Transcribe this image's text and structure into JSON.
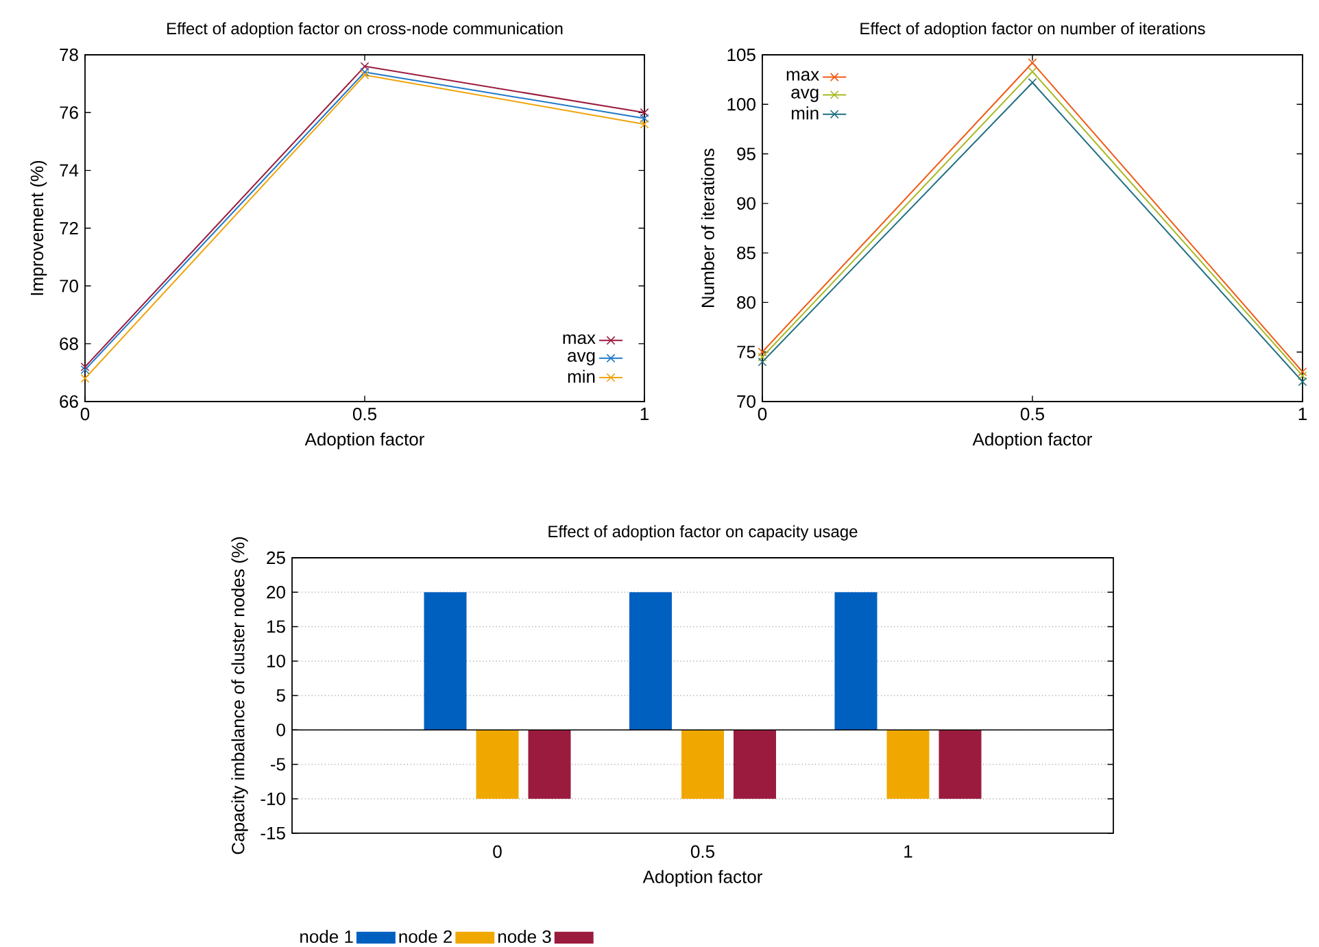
{
  "chart_data": [
    {
      "type": "line",
      "title": "Effect of adoption factor on cross-node communication",
      "xlabel": "Adoption factor",
      "ylabel": "Improvement (%)",
      "x": [
        0,
        0.5,
        1
      ],
      "xlim": [
        0,
        1
      ],
      "xticks": [
        0,
        0.5,
        1
      ],
      "ylim": [
        66,
        78
      ],
      "yticks": [
        66,
        68,
        70,
        72,
        74,
        76,
        78
      ],
      "legend": "bottom right",
      "marker": "cross",
      "line_style": "solid",
      "series": [
        {
          "name": "max",
          "color": "#9b1b3f",
          "values": [
            67.2,
            77.6,
            76.0
          ]
        },
        {
          "name": "avg",
          "color": "#1f78c8",
          "values": [
            67.1,
            77.4,
            75.8
          ]
        },
        {
          "name": "min",
          "color": "#f0a30a",
          "values": [
            66.8,
            77.3,
            75.6
          ]
        }
      ]
    },
    {
      "type": "line",
      "title": "Effect of adoption factor on number of iterations",
      "xlabel": "Adoption factor",
      "ylabel": "Number of iterations",
      "x": [
        0,
        0.5,
        1
      ],
      "xlim": [
        0,
        1
      ],
      "xticks": [
        0,
        0.5,
        1
      ],
      "ylim": [
        70,
        105
      ],
      "yticks": [
        70,
        75,
        80,
        85,
        90,
        95,
        100,
        105
      ],
      "legend": "top left",
      "marker": "cross",
      "line_style": "solid",
      "series": [
        {
          "name": "max",
          "color": "#f05a14",
          "values": [
            75,
            104.2,
            73
          ]
        },
        {
          "name": "avg",
          "color": "#a8b820",
          "values": [
            74.5,
            103.3,
            72.6
          ]
        },
        {
          "name": "min",
          "color": "#1f6f80",
          "values": [
            74,
            102.2,
            72
          ]
        }
      ]
    },
    {
      "type": "bar",
      "title": "Effect of adoption factor on capacity usage",
      "xlabel": "Adoption factor",
      "ylabel": "Capacity imbalance of cluster nodes (%)",
      "categories": [
        "0",
        "0.5",
        "1"
      ],
      "ylim": [
        -15,
        25
      ],
      "yticks": [
        -15,
        -10,
        -5,
        0,
        5,
        10,
        15,
        20,
        25
      ],
      "grid": "y",
      "legend": "bottom",
      "ref_lines": [
        {
          "axis": "y",
          "value": 0,
          "color": "#000000"
        }
      ],
      "series": [
        {
          "name": "node 1",
          "color": "#0060c0",
          "values": [
            20,
            20,
            20
          ]
        },
        {
          "name": "node 2",
          "color": "#f0a800",
          "values": [
            -10,
            -10,
            -10
          ]
        },
        {
          "name": "node 3",
          "color": "#9b1b3f",
          "values": [
            -10,
            -10,
            -10
          ]
        }
      ]
    }
  ]
}
